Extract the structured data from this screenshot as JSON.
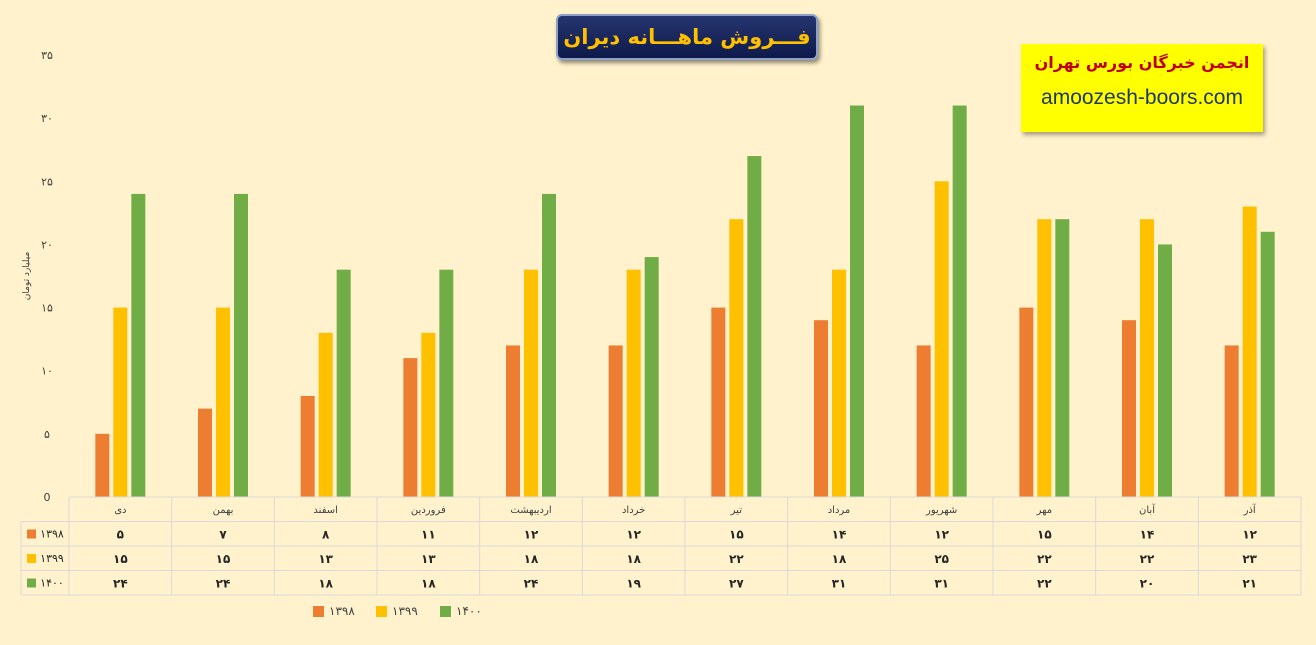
{
  "title": "فـــروش ماهـــانه دیران",
  "brand": {
    "name": "انجمن خبرگان بورس تهران",
    "site": "amoozesh-boors.com"
  },
  "chart_data": {
    "type": "bar",
    "ylabel": "میلیارد تومان",
    "ylim": [
      0,
      35
    ],
    "yticks": [
      "0",
      "۵",
      "۱۰",
      "۱۵",
      "۲۰",
      "۲۵",
      "۳۰",
      "۳۵"
    ],
    "grid": false,
    "legend_position": "bottom",
    "categories": [
      "دی",
      "بهمن",
      "اسفند",
      "فروردین",
      "اردیبهشت",
      "خرداد",
      "تیر",
      "مرداد",
      "شهریور",
      "مهر",
      "آبان",
      "آذر"
    ],
    "series": [
      {
        "name": "۱۳۹۸",
        "color": "#ED7D31",
        "values": [
          5,
          7,
          8,
          11,
          12,
          12,
          15,
          14,
          12,
          15,
          14,
          12
        ],
        "labels": [
          "۵",
          "۷",
          "۸",
          "۱۱",
          "۱۲",
          "۱۲",
          "۱۵",
          "۱۴",
          "۱۲",
          "۱۵",
          "۱۴",
          "۱۲"
        ]
      },
      {
        "name": "۱۳۹۹",
        "color": "#FFC000",
        "values": [
          15,
          15,
          13,
          13,
          18,
          18,
          22,
          18,
          25,
          22,
          22,
          23
        ],
        "labels": [
          "۱۵",
          "۱۵",
          "۱۳",
          "۱۳",
          "۱۸",
          "۱۸",
          "۲۲",
          "۱۸",
          "۲۵",
          "۲۲",
          "۲۲",
          "۲۳"
        ]
      },
      {
        "name": "۱۴۰۰",
        "color": "#70AD47",
        "values": [
          24,
          24,
          18,
          18,
          24,
          19,
          27,
          31,
          31,
          22,
          20,
          21
        ],
        "labels": [
          "۲۴",
          "۲۴",
          "۱۸",
          "۱۸",
          "۲۴",
          "۱۹",
          "۲۷",
          "۳۱",
          "۳۱",
          "۲۲",
          "۲۰",
          "۲۱"
        ]
      }
    ]
  }
}
